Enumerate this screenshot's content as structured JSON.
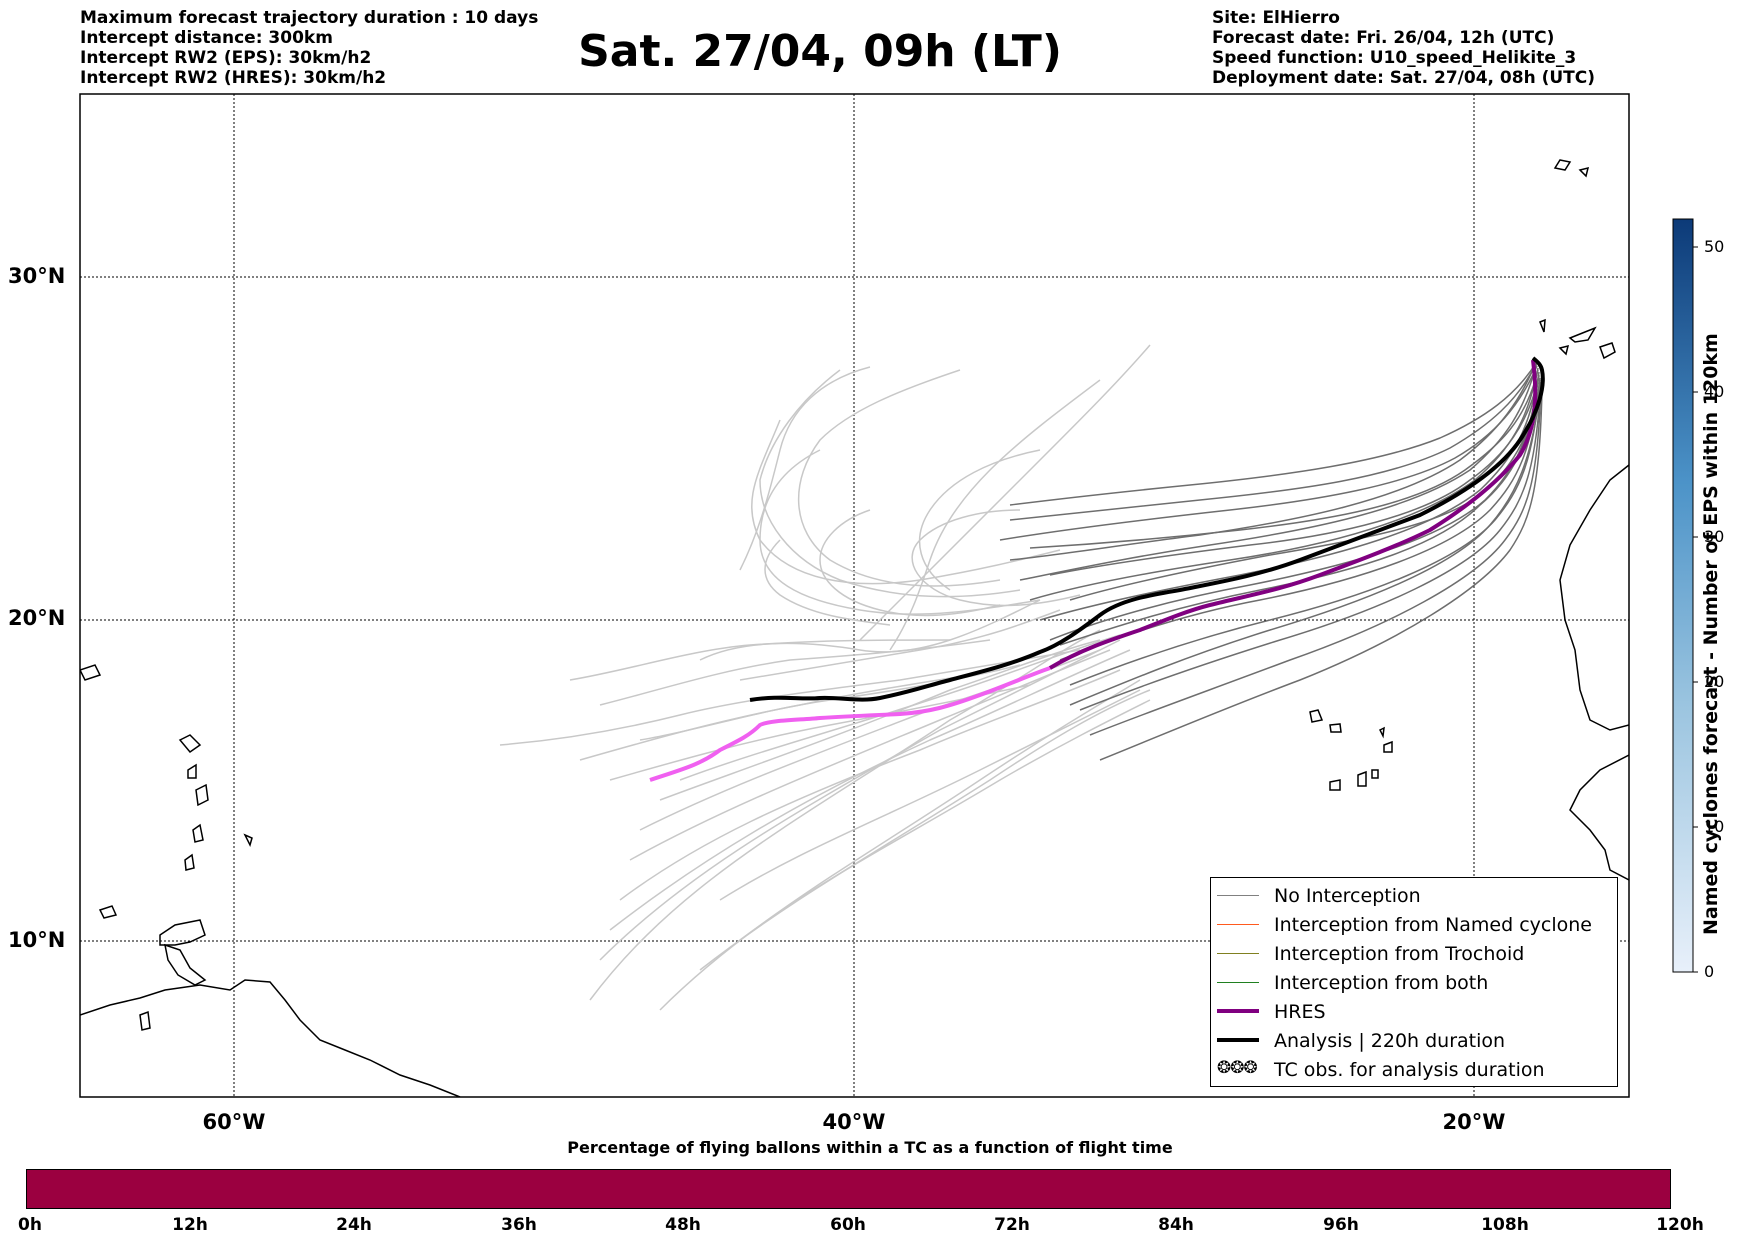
{
  "header_left": [
    "Maximum forecast trajectory duration : 10 days",
    "Intercept distance: 300km",
    "Intercept RW2 (EPS):  30km/h2",
    "Intercept RW2 (HRES): 30km/h2"
  ],
  "header_right": [
    "Site: ElHierro",
    "Forecast date: Fri. 26/04, 12h (UTC)",
    "Speed function: U10_speed_Helikite_3",
    "Deployment date: Sat. 27/04, 08h (UTC)"
  ],
  "title": "Sat. 27/04, 09h (LT)",
  "axes": {
    "lat_labels": [
      "30°N",
      "20°N",
      "10°N"
    ],
    "lon_labels": [
      "60°W",
      "40°W",
      "20°W"
    ]
  },
  "legend": {
    "items": [
      {
        "label": "No Interception",
        "color": "#808080"
      },
      {
        "label": "Interception from Named cyclone",
        "color": "#ff5a1e"
      },
      {
        "label": "Interception from Trochoid",
        "color": "#808020"
      },
      {
        "label": "Interception from both",
        "color": "#208020"
      },
      {
        "label": "HRES",
        "color": "#800080"
      },
      {
        "label": "Analysis | 220h duration",
        "color": "#000000"
      },
      {
        "label": "TC obs. for analysis duration",
        "color": "#000000",
        "icon": "cyclone-symbol-icon"
      }
    ]
  },
  "colorbar": {
    "label": "Named cyclones forecast - Number of EPS within 120km",
    "ticks": [
      "0",
      "10",
      "20",
      "30",
      "40",
      "50"
    ]
  },
  "bottom_bar": {
    "title": "Percentage of flying ballons within a TC as a function of flight time",
    "color": "#9b0040",
    "ticks": [
      "0h",
      "12h",
      "24h",
      "36h",
      "48h",
      "60h",
      "72h",
      "84h",
      "96h",
      "108h",
      "120h"
    ]
  }
}
